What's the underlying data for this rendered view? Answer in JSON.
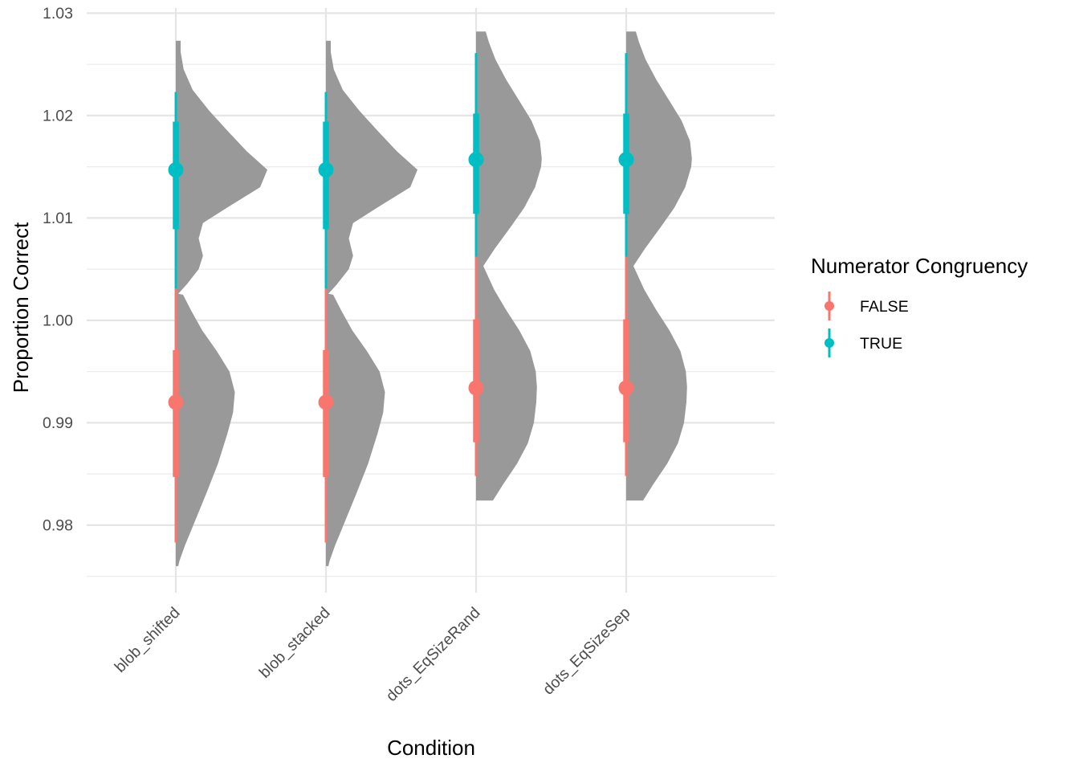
{
  "chart_data": {
    "type": "halfeye",
    "xlabel": "Condition",
    "ylabel": "Proportion Correct",
    "ylim": [
      0.9734,
      1.0305
    ],
    "y_ticks": [
      0.98,
      0.99,
      1.0,
      1.01,
      1.02,
      1.03
    ],
    "y_tick_labels": [
      "0.98",
      "0.99",
      "1.00",
      "1.01",
      "1.02",
      "1.03"
    ],
    "categories": [
      "blob_shifted",
      "blob_stacked",
      "dots_EqSizeRand",
      "dots_EqSizeSep"
    ],
    "grid": true,
    "legend": {
      "title": "Numerator Congruency",
      "position": "right",
      "entries": [
        {
          "label": "FALSE",
          "color": "#F8766D"
        },
        {
          "label": "TRUE",
          "color": "#00BFC4"
        }
      ]
    },
    "density_color": "#999999",
    "series": [
      {
        "name": "FALSE",
        "color": "#F8766D",
        "points": [
          {
            "category": "blob_shifted",
            "median": 0.992,
            "inner": [
              0.9847,
              0.9971
            ],
            "outer": [
              0.9783,
              1.0031
            ]
          },
          {
            "category": "blob_stacked",
            "median": 0.992,
            "inner": [
              0.9847,
              0.9971
            ],
            "outer": [
              0.9783,
              1.0031
            ]
          },
          {
            "category": "dots_EqSizeRand",
            "median": 0.9934,
            "inner": [
              0.9881,
              1.0001
            ],
            "outer": [
              0.9848,
              1.0062
            ]
          },
          {
            "category": "dots_EqSizeSep",
            "median": 0.9934,
            "inner": [
              0.9881,
              1.0001
            ],
            "outer": [
              0.9848,
              1.0062
            ]
          }
        ]
      },
      {
        "name": "TRUE",
        "color": "#00BFC4",
        "points": [
          {
            "category": "blob_shifted",
            "median": 1.0147,
            "inner": [
              1.0089,
              1.0194
            ],
            "outer": [
              1.0031,
              1.0223
            ]
          },
          {
            "category": "blob_stacked",
            "median": 1.0147,
            "inner": [
              1.0089,
              1.0194
            ],
            "outer": [
              1.0031,
              1.0223
            ]
          },
          {
            "category": "dots_EqSizeRand",
            "median": 1.0157,
            "inner": [
              1.0104,
              1.0202
            ],
            "outer": [
              1.0062,
              1.0261
            ]
          },
          {
            "category": "dots_EqSizeSep",
            "median": 1.0157,
            "inner": [
              1.0104,
              1.0202
            ],
            "outer": [
              1.0062,
              1.0261
            ]
          }
        ]
      }
    ],
    "densities": [
      {
        "category": "blob_shifted",
        "profile": [
          [
            0.976,
            0.04
          ],
          [
            0.9765,
            0.06
          ],
          [
            0.978,
            0.15
          ],
          [
            0.98,
            0.29
          ],
          [
            0.983,
            0.5
          ],
          [
            0.986,
            0.7
          ],
          [
            0.989,
            0.86
          ],
          [
            0.991,
            0.95
          ],
          [
            0.993,
            0.98
          ],
          [
            0.995,
            0.89
          ],
          [
            0.997,
            0.68
          ],
          [
            0.999,
            0.44
          ],
          [
            1.001,
            0.25
          ],
          [
            1.0025,
            0.12
          ],
          [
            1.0026,
            0.04
          ],
          [
            1.0035,
            0.18
          ],
          [
            1.005,
            0.38
          ],
          [
            1.0063,
            0.45
          ],
          [
            1.008,
            0.38
          ],
          [
            1.0095,
            0.45
          ],
          [
            1.011,
            0.85
          ],
          [
            1.013,
            1.4
          ],
          [
            1.0147,
            1.52
          ],
          [
            1.0165,
            1.18
          ],
          [
            1.0185,
            0.86
          ],
          [
            1.0205,
            0.55
          ],
          [
            1.0225,
            0.28
          ],
          [
            1.0245,
            0.13
          ],
          [
            1.0262,
            0.08
          ],
          [
            1.0273,
            0.08
          ]
        ]
      },
      {
        "category": "blob_stacked",
        "profile": [
          [
            0.976,
            0.04
          ],
          [
            0.9765,
            0.06
          ],
          [
            0.978,
            0.15
          ],
          [
            0.98,
            0.29
          ],
          [
            0.983,
            0.5
          ],
          [
            0.986,
            0.7
          ],
          [
            0.989,
            0.86
          ],
          [
            0.991,
            0.95
          ],
          [
            0.993,
            0.98
          ],
          [
            0.995,
            0.89
          ],
          [
            0.997,
            0.68
          ],
          [
            0.999,
            0.44
          ],
          [
            1.001,
            0.25
          ],
          [
            1.0025,
            0.12
          ],
          [
            1.0026,
            0.04
          ],
          [
            1.0035,
            0.18
          ],
          [
            1.005,
            0.38
          ],
          [
            1.0063,
            0.45
          ],
          [
            1.008,
            0.38
          ],
          [
            1.0095,
            0.45
          ],
          [
            1.011,
            0.85
          ],
          [
            1.013,
            1.4
          ],
          [
            1.0147,
            1.52
          ],
          [
            1.0165,
            1.18
          ],
          [
            1.0185,
            0.86
          ],
          [
            1.0205,
            0.55
          ],
          [
            1.0225,
            0.28
          ],
          [
            1.0245,
            0.13
          ],
          [
            1.0262,
            0.08
          ],
          [
            1.0273,
            0.08
          ]
        ]
      },
      {
        "category": "dots_EqSizeRand",
        "profile": [
          [
            0.9824,
            0.14
          ],
          [
            0.9824,
            0.28
          ],
          [
            0.984,
            0.45
          ],
          [
            0.986,
            0.68
          ],
          [
            0.988,
            0.86
          ],
          [
            0.99,
            0.96
          ],
          [
            0.992,
            1.0
          ],
          [
            0.9935,
            1.01
          ],
          [
            0.995,
            0.99
          ],
          [
            0.997,
            0.9
          ],
          [
            0.999,
            0.72
          ],
          [
            1.001,
            0.5
          ],
          [
            1.003,
            0.3
          ],
          [
            1.0053,
            0.12
          ],
          [
            1.007,
            0.31
          ],
          [
            1.009,
            0.56
          ],
          [
            1.011,
            0.8
          ],
          [
            1.013,
            0.98
          ],
          [
            1.015,
            1.08
          ],
          [
            1.0158,
            1.09
          ],
          [
            1.0175,
            1.06
          ],
          [
            1.0195,
            0.92
          ],
          [
            1.0215,
            0.71
          ],
          [
            1.0235,
            0.5
          ],
          [
            1.0255,
            0.32
          ],
          [
            1.0272,
            0.21
          ],
          [
            1.0282,
            0.16
          ]
        ]
      },
      {
        "category": "dots_EqSizeSep",
        "profile": [
          [
            0.9824,
            0.14
          ],
          [
            0.9824,
            0.28
          ],
          [
            0.984,
            0.45
          ],
          [
            0.986,
            0.68
          ],
          [
            0.988,
            0.86
          ],
          [
            0.99,
            0.96
          ],
          [
            0.992,
            1.0
          ],
          [
            0.9935,
            1.01
          ],
          [
            0.995,
            0.99
          ],
          [
            0.997,
            0.9
          ],
          [
            0.999,
            0.72
          ],
          [
            1.001,
            0.5
          ],
          [
            1.003,
            0.3
          ],
          [
            1.0053,
            0.12
          ],
          [
            1.007,
            0.31
          ],
          [
            1.009,
            0.56
          ],
          [
            1.011,
            0.8
          ],
          [
            1.013,
            0.98
          ],
          [
            1.015,
            1.08
          ],
          [
            1.0158,
            1.09
          ],
          [
            1.0175,
            1.06
          ],
          [
            1.0195,
            0.92
          ],
          [
            1.0215,
            0.71
          ],
          [
            1.0235,
            0.5
          ],
          [
            1.0255,
            0.32
          ],
          [
            1.0272,
            0.21
          ],
          [
            1.0282,
            0.16
          ]
        ]
      }
    ]
  }
}
